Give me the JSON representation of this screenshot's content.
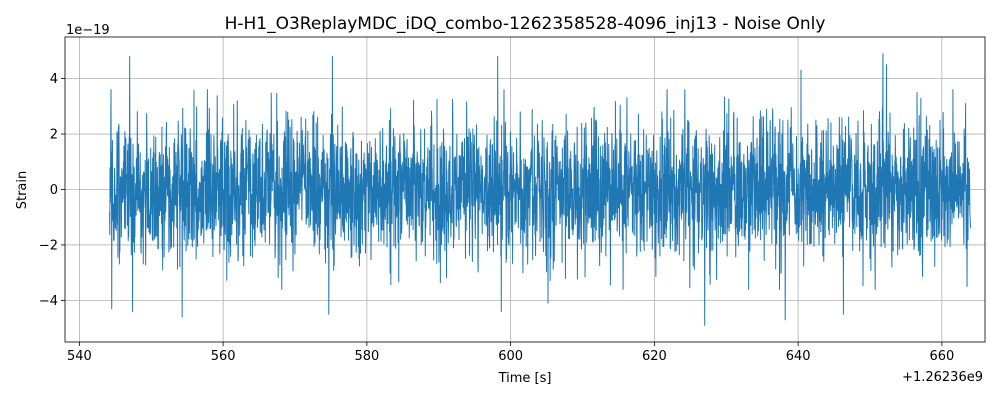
{
  "chart_data": {
    "type": "line",
    "title": "H-H1_O3ReplayMDC_iDQ_combo-1262358528-4096_inj13 - Noise Only",
    "xlabel": "Time [s]",
    "ylabel": "Strain",
    "x_offset_label": "+1.26236e9",
    "y_scale_label": "1e−19",
    "xlim": [
      538,
      666
    ],
    "ylim": [
      -5.5,
      5.5
    ],
    "x_ticks": [
      540,
      560,
      580,
      600,
      620,
      640,
      660
    ],
    "y_ticks": [
      -4,
      -2,
      0,
      2,
      4
    ],
    "x_tick_labels": [
      "540",
      "560",
      "580",
      "600",
      "620",
      "640",
      "660"
    ],
    "y_tick_labels": [
      "−4",
      "−2",
      "0",
      "2",
      "4"
    ],
    "grid": true,
    "series": [
      {
        "color": "#1f77b4",
        "x_range": [
          544.2,
          664.0
        ],
        "typical_envelope": [
          -2.0,
          2.0
        ],
        "peaks": [
          {
            "x": 544.4,
            "y": 3.6
          },
          {
            "x": 544.5,
            "y": -4.3
          },
          {
            "x": 547.0,
            "y": 4.8
          },
          {
            "x": 547.4,
            "y": -4.4
          },
          {
            "x": 554.3,
            "y": -4.6
          },
          {
            "x": 575.2,
            "y": 4.8
          },
          {
            "x": 574.7,
            "y": -4.5
          },
          {
            "x": 598.2,
            "y": 4.8
          },
          {
            "x": 598.7,
            "y": -4.4
          },
          {
            "x": 605.2,
            "y": -4.1
          },
          {
            "x": 627.0,
            "y": -4.9
          },
          {
            "x": 638.2,
            "y": -4.7
          },
          {
            "x": 640.4,
            "y": 4.3
          },
          {
            "x": 646.3,
            "y": -4.5
          },
          {
            "x": 651.8,
            "y": 4.9
          },
          {
            "x": 652.3,
            "y": 4.5
          },
          {
            "x": 663.3,
            "y": 3.1
          },
          {
            "x": 663.5,
            "y": -3.5
          }
        ]
      }
    ]
  }
}
